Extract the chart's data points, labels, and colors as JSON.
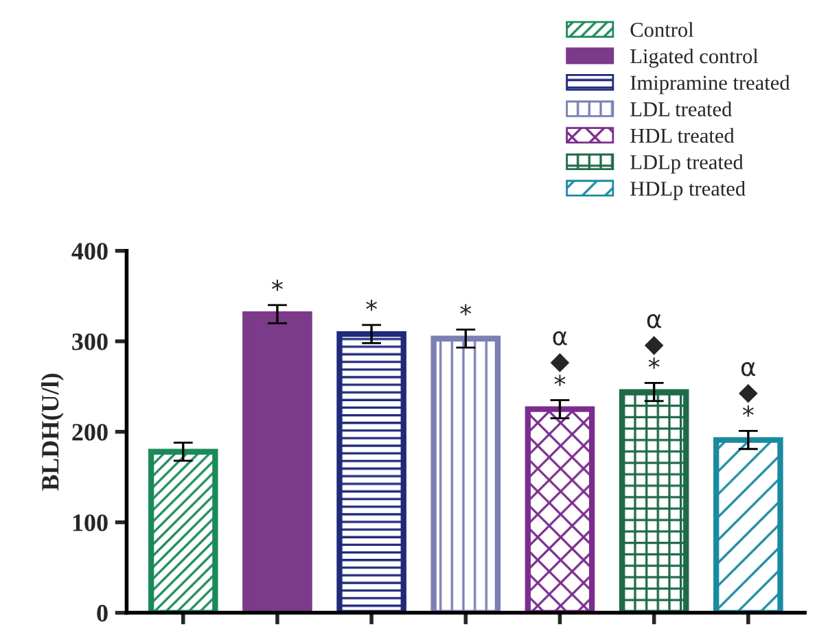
{
  "chart_data": {
    "type": "bar",
    "ylabel": "BLDH(U/l)",
    "categories": [
      null,
      null,
      null,
      null,
      null,
      null,
      null
    ],
    "series": [
      {
        "name": "Control",
        "color": "#1a8a5a",
        "values": [
          178,
          null,
          null,
          null,
          null,
          null,
          null
        ],
        "errors": [
          10,
          null,
          null,
          null,
          null,
          null,
          null
        ]
      },
      {
        "name": "Ligated control",
        "color": "#7b3a8a",
        "values": [
          null,
          330,
          null,
          null,
          null,
          null,
          null
        ],
        "errors": [
          null,
          10,
          null,
          null,
          null,
          null,
          null
        ],
        "value_labels": [
          null,
          "*",
          null,
          null,
          null,
          null,
          null
        ]
      },
      {
        "name": "Imipramine treated",
        "color": "#1f2a7a",
        "values": [
          null,
          null,
          308,
          null,
          null,
          null,
          null
        ],
        "errors": [
          null,
          null,
          10,
          null,
          null,
          null,
          null
        ],
        "value_labels": [
          null,
          null,
          "*",
          null,
          null,
          null,
          null
        ]
      },
      {
        "name": "LDL treated",
        "color": "#7b7fb5",
        "values": [
          null,
          null,
          null,
          303,
          null,
          null,
          null
        ],
        "errors": [
          null,
          null,
          null,
          10,
          null,
          null,
          null
        ],
        "value_labels": [
          null,
          null,
          null,
          "*",
          null,
          null,
          null
        ]
      },
      {
        "name": "HDL treated",
        "color": "#7b2d8e",
        "values": [
          null,
          null,
          null,
          null,
          225,
          null,
          null
        ],
        "errors": [
          null,
          null,
          null,
          null,
          10,
          null,
          null
        ],
        "value_labels": [
          null,
          null,
          null,
          null,
          "α\n◆\n*",
          null,
          null
        ]
      },
      {
        "name": "LDLp treated",
        "color": "#1f6a48",
        "values": [
          null,
          null,
          null,
          null,
          null,
          244,
          null
        ],
        "errors": [
          null,
          null,
          null,
          null,
          null,
          10,
          null
        ],
        "value_labels": [
          null,
          null,
          null,
          null,
          null,
          "α\n◆\n*",
          null
        ]
      },
      {
        "name": "HDLp treated",
        "color": "#1a8aa0",
        "values": [
          null,
          null,
          null,
          null,
          null,
          null,
          191
        ],
        "errors": [
          null,
          null,
          null,
          null,
          null,
          null,
          10
        ],
        "value_labels": [
          null,
          null,
          null,
          null,
          null,
          null,
          "α\n◆\n*"
        ]
      }
    ],
    "ylim": [
      0,
      400
    ],
    "yticks": [
      0,
      100,
      200,
      300,
      400
    ],
    "grid": false,
    "legend": "top right"
  }
}
